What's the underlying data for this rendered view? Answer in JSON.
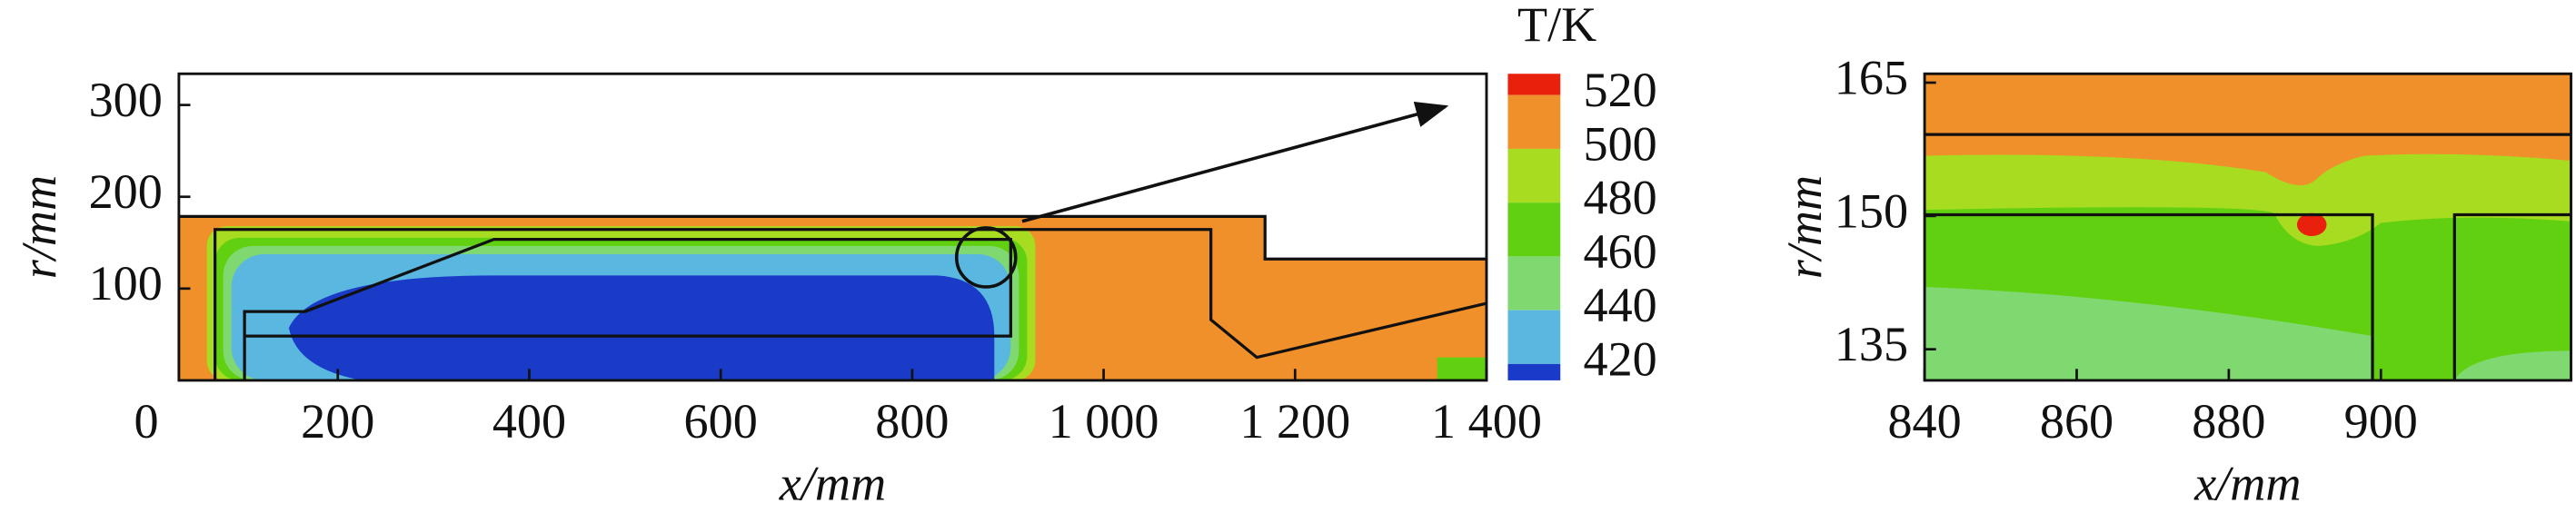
{
  "chart_data": [
    {
      "type": "contour",
      "xlabel": "x/mm",
      "ylabel": "r/mm",
      "xlim": [
        34,
        1400
      ],
      "ylim": [
        0,
        334
      ],
      "xticks": [
        0,
        200,
        400,
        600,
        800,
        {
          "value": 1000,
          "label": "1 000"
        },
        {
          "value": 1200,
          "label": "1 200"
        },
        {
          "value": 1400,
          "label": "1 400"
        }
      ],
      "yticks": [
        100,
        200,
        300
      ],
      "colorbar": {
        "title": "T/K",
        "levels": [
          520,
          500,
          480,
          460,
          440,
          420
        ],
        "colors": [
          "#e8200c",
          "#f0902a",
          "#a8dc20",
          "#60d010",
          "#80d870",
          "#5ab8e0",
          "#1a3ac8"
        ]
      }
    },
    {
      "type": "contour",
      "xlabel": "x/mm",
      "ylabel": "r/mm",
      "xlim": [
        840,
        925
      ],
      "ylim": [
        131.5,
        166
      ],
      "xticks": [
        840,
        860,
        880,
        900
      ],
      "yticks": [
        135,
        150,
        165
      ]
    }
  ]
}
